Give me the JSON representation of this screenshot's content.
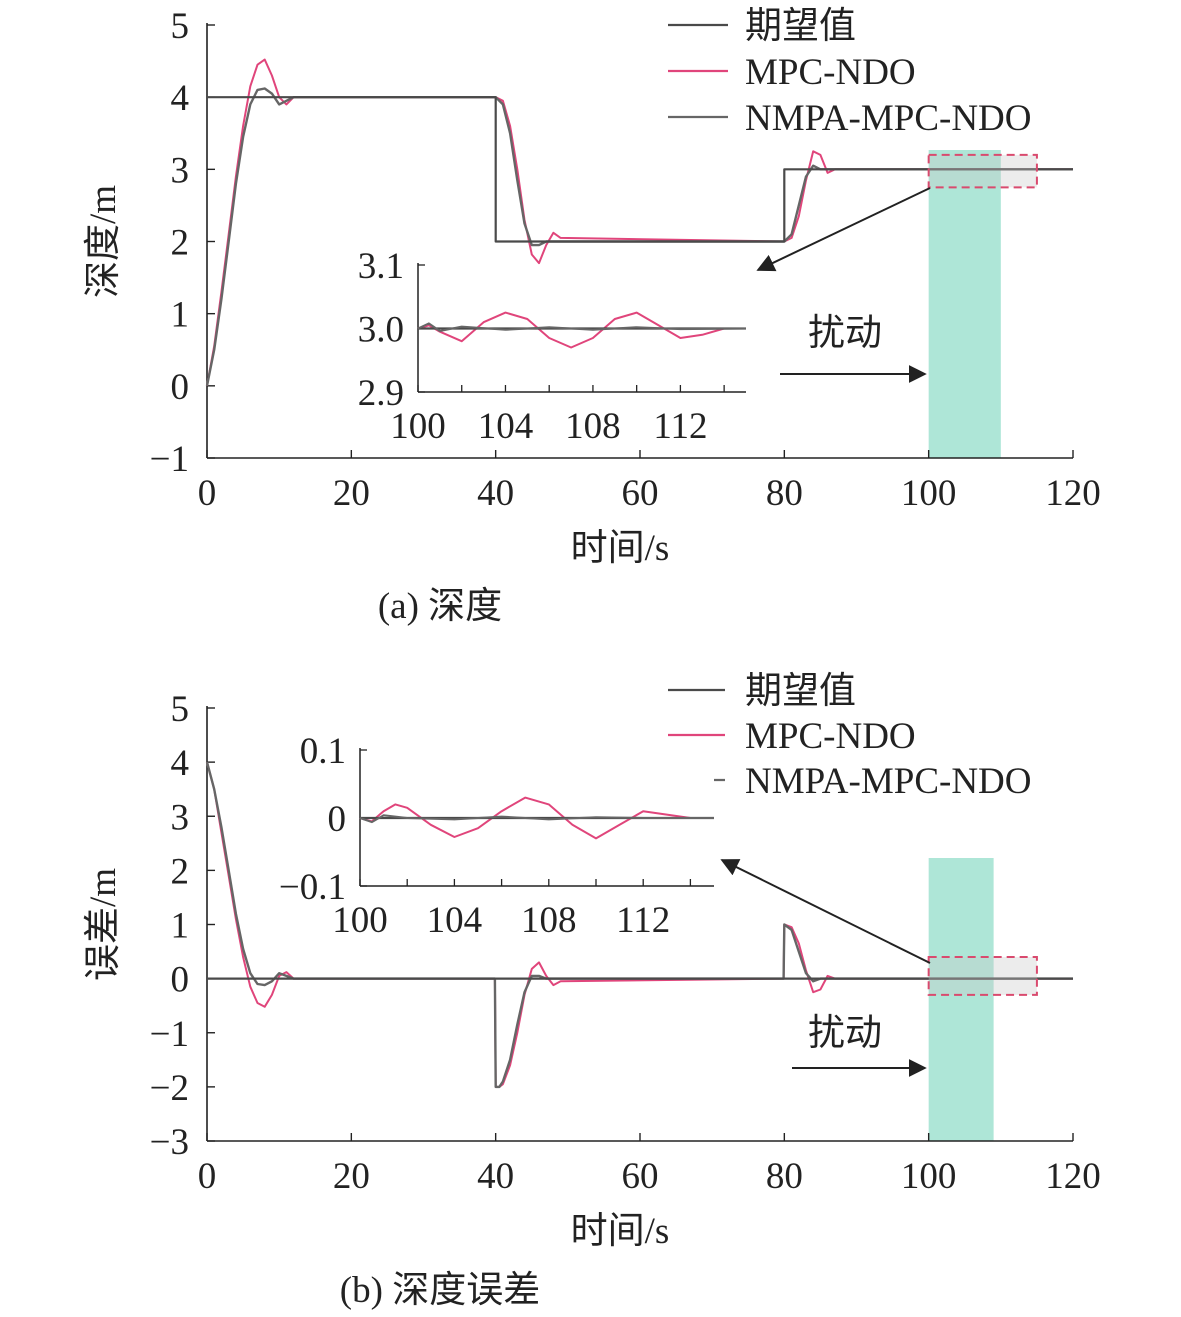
{
  "chart_data": [
    {
      "type": "line",
      "caption": "(a) 深度",
      "xlabel": "时间/s",
      "ylabel": "深度/m",
      "xlim": [
        0,
        120
      ],
      "ylim": [
        -1,
        5
      ],
      "xticks": [
        "0",
        "20",
        "40",
        "60",
        "80",
        "100",
        "120"
      ],
      "yticks": [
        "−1",
        "0",
        "1",
        "2",
        "3",
        "4",
        "5"
      ],
      "legend": {
        "position": "top-right"
      },
      "colors": {
        "desired": "#4a4a4a",
        "mpc_ndo": "#e0457b",
        "nmpa": "#666666",
        "disturbance": "#aee6d7",
        "zoom_box": "#d94a6e"
      },
      "annotation": "扰动",
      "disturbance_window": [
        100,
        110
      ],
      "zoom_box": {
        "x": [
          100,
          115
        ],
        "y": [
          2.75,
          3.2
        ]
      },
      "series": [
        {
          "name": "期望值",
          "x": [
            0,
            40,
            40,
            80,
            80,
            120
          ],
          "y": [
            4,
            4,
            2,
            2,
            3,
            3
          ]
        },
        {
          "name": "MPC-NDO",
          "x": [
            0,
            1,
            2,
            3,
            4,
            5,
            6,
            7,
            8,
            9,
            10,
            11,
            12,
            40,
            41,
            42,
            43,
            44,
            45,
            46,
            47,
            48,
            49,
            80,
            81,
            82,
            83,
            84,
            85,
            86,
            87,
            120
          ],
          "y": [
            0,
            0.55,
            1.3,
            2.1,
            2.9,
            3.6,
            4.15,
            4.45,
            4.52,
            4.3,
            4.0,
            3.9,
            4.0,
            4.0,
            3.95,
            3.6,
            3.0,
            2.3,
            1.82,
            1.7,
            1.95,
            2.12,
            2.05,
            2.0,
            2.05,
            2.35,
            2.85,
            3.25,
            3.2,
            2.95,
            3.0,
            3.0
          ]
        },
        {
          "name": "NMPA-MPC-NDO",
          "x": [
            0,
            1,
            2,
            3,
            4,
            5,
            6,
            7,
            8,
            9,
            10,
            11,
            12,
            40,
            41,
            42,
            43,
            44,
            45,
            46,
            47,
            80,
            81,
            82,
            83,
            84,
            85,
            86,
            120
          ],
          "y": [
            0,
            0.5,
            1.2,
            2.0,
            2.8,
            3.45,
            3.9,
            4.1,
            4.12,
            4.05,
            3.9,
            3.95,
            4.0,
            4.0,
            3.9,
            3.5,
            2.85,
            2.25,
            1.95,
            1.95,
            2.0,
            2.0,
            2.1,
            2.5,
            2.9,
            3.05,
            3.0,
            3.0,
            3.0
          ]
        }
      ],
      "inset": {
        "xlim": [
          100,
          115
        ],
        "ylim": [
          2.9,
          3.1
        ],
        "xticks": [
          "100",
          "104",
          "108",
          "112"
        ],
        "yticks": [
          "2.9",
          "3.0",
          "3.1"
        ],
        "series": [
          {
            "name": "期望值",
            "x": [
              100,
              115
            ],
            "y": [
              3.0,
              3.0
            ]
          },
          {
            "name": "MPC-NDO",
            "x": [
              100,
              100.5,
              101,
              102,
              103,
              104,
              105,
              106,
              107,
              108,
              109,
              110,
              111,
              112,
              113,
              114,
              115
            ],
            "y": [
              3.0,
              3.005,
              2.995,
              2.98,
              3.01,
              3.025,
              3.015,
              2.985,
              2.97,
              2.985,
              3.015,
              3.025,
              3.005,
              2.985,
              2.99,
              3.0,
              3.0
            ]
          },
          {
            "name": "NMPA-MPC-NDO",
            "x": [
              100,
              100.5,
              101,
              102,
              104,
              106,
              108,
              110,
              112,
              115
            ],
            "y": [
              3.0,
              3.008,
              2.996,
              3.003,
              2.998,
              3.002,
              2.998,
              3.002,
              2.999,
              3.0
            ]
          }
        ]
      }
    },
    {
      "type": "line",
      "caption": "(b) 深度误差",
      "xlabel": "时间/s",
      "ylabel": "误差/m",
      "xlim": [
        0,
        120
      ],
      "ylim": [
        -3,
        5
      ],
      "xticks": [
        "0",
        "20",
        "40",
        "60",
        "80",
        "100",
        "120"
      ],
      "yticks": [
        "−3",
        "−2",
        "−1",
        "0",
        "1",
        "2",
        "3",
        "4",
        "5"
      ],
      "legend": {
        "position": "top-right"
      },
      "colors": {
        "desired": "#4a4a4a",
        "mpc_ndo": "#e0457b",
        "nmpa": "#666666",
        "disturbance": "#aee6d7",
        "zoom_box": "#d94a6e"
      },
      "annotation": "扰动",
      "disturbance_window": [
        100,
        109
      ],
      "zoom_box": {
        "x": [
          100,
          115
        ],
        "y": [
          -0.3,
          0.4
        ]
      },
      "series": [
        {
          "name": "期望值",
          "x": [
            0,
            120
          ],
          "y": [
            0,
            0
          ]
        },
        {
          "name": "MPC-NDO",
          "x": [
            0,
            1,
            2,
            3,
            4,
            5,
            6,
            7,
            8,
            9,
            10,
            11,
            12,
            39.9,
            40,
            40.5,
            41,
            42,
            43,
            44,
            45,
            46,
            47,
            48,
            49,
            79.9,
            80,
            81,
            82,
            83,
            84,
            85,
            86,
            87,
            120
          ],
          "y": [
            4,
            3.5,
            2.7,
            1.9,
            1.1,
            0.4,
            -0.15,
            -0.45,
            -0.52,
            -0.3,
            0.05,
            0.12,
            0.0,
            0.0,
            -2.0,
            -2.0,
            -1.95,
            -1.6,
            -1.0,
            -0.3,
            0.18,
            0.3,
            0.05,
            -0.12,
            -0.05,
            0.0,
            1.0,
            0.95,
            0.65,
            0.15,
            -0.25,
            -0.2,
            0.05,
            0.0,
            0.0
          ]
        },
        {
          "name": "NMPA-MPC-NDO",
          "x": [
            0,
            1,
            2,
            3,
            4,
            5,
            6,
            7,
            8,
            9,
            10,
            11,
            12,
            39.9,
            40,
            40.5,
            41,
            42,
            43,
            44,
            45,
            46,
            47,
            79.9,
            80,
            81,
            82,
            83,
            84,
            85,
            86,
            120
          ],
          "y": [
            4,
            3.5,
            2.8,
            2.0,
            1.2,
            0.55,
            0.1,
            -0.1,
            -0.12,
            -0.05,
            0.1,
            0.05,
            0.0,
            0.0,
            -2.0,
            -2.0,
            -1.9,
            -1.5,
            -0.85,
            -0.25,
            0.05,
            0.05,
            0.0,
            0.0,
            1.0,
            0.9,
            0.5,
            0.1,
            -0.05,
            0.0,
            0.0,
            0.0
          ]
        }
      ],
      "inset": {
        "xlim": [
          100,
          115
        ],
        "ylim": [
          -0.1,
          0.1
        ],
        "xticks": [
          "100",
          "104",
          "108",
          "112"
        ],
        "yticks": [
          "−0.1",
          "0",
          "0.1"
        ],
        "series": [
          {
            "name": "期望值",
            "x": [
              100,
              115
            ],
            "y": [
              0,
              0
            ]
          },
          {
            "name": "MPC-NDO",
            "x": [
              100,
              100.5,
              101,
              101.5,
              102,
              103,
              104,
              105,
              106,
              107,
              108,
              109,
              110,
              111,
              112,
              113,
              114,
              115
            ],
            "y": [
              0.0,
              -0.005,
              0.01,
              0.02,
              0.015,
              -0.01,
              -0.028,
              -0.015,
              0.01,
              0.03,
              0.02,
              -0.01,
              -0.03,
              -0.01,
              0.01,
              0.005,
              0.0,
              0.0
            ]
          },
          {
            "name": "NMPA-MPC-NDO",
            "x": [
              100,
              100.5,
              101,
              102,
              104,
              106,
              108,
              110,
              112,
              115
            ],
            "y": [
              0.0,
              -0.006,
              0.004,
              0.0,
              -0.002,
              0.002,
              -0.002,
              0.001,
              0.0,
              0.0
            ]
          }
        ]
      }
    }
  ]
}
